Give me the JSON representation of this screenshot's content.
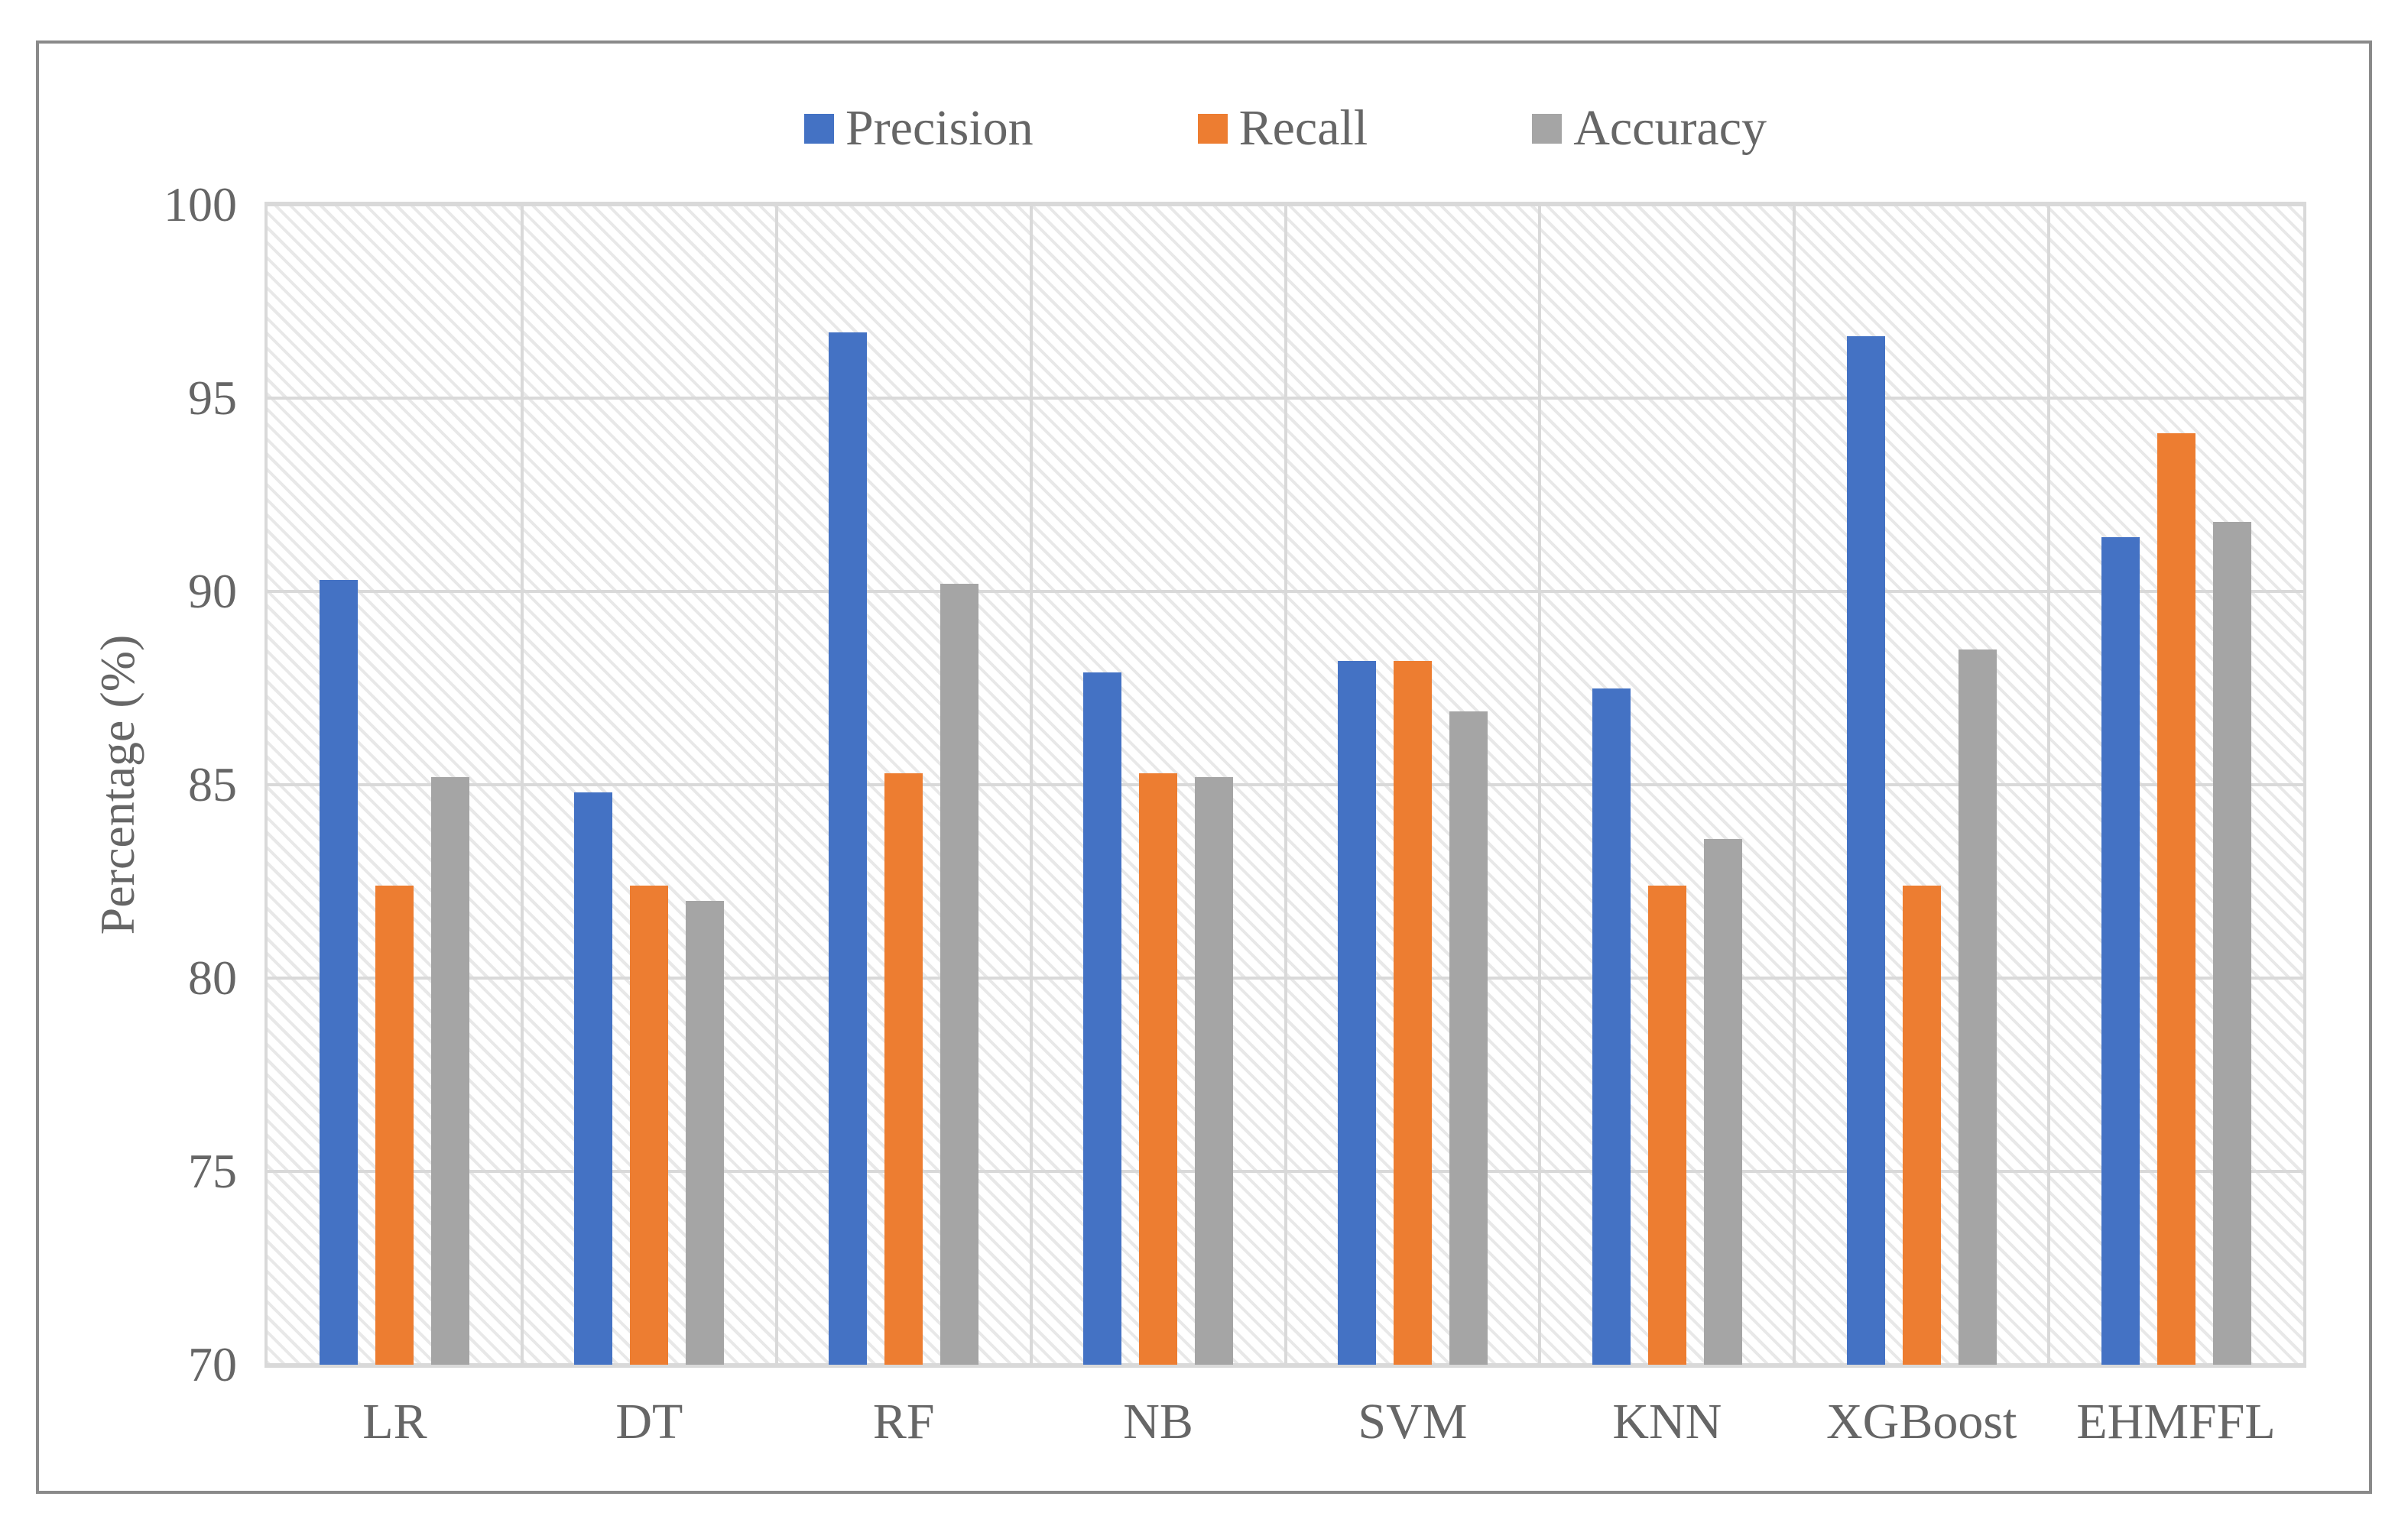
{
  "figure": {
    "kind": "clustered-bar-chart",
    "border_color": "#8A8A8A",
    "background_color": "#FFFFFF"
  },
  "colors": {
    "gridline": "#D9D9D9",
    "text": "#666666",
    "precision": "#4472C4",
    "recall": "#ED7D31",
    "accuracy": "#A5A5A5"
  },
  "chart_data": {
    "type": "bar",
    "title": "",
    "xlabel": "",
    "ylabel": "Percentage (%)",
    "ylim": [
      70,
      100
    ],
    "yticks": [
      70,
      75,
      80,
      85,
      90,
      95,
      100
    ],
    "grid": true,
    "legend_position": "top",
    "plot_background": "diagonal-hatch",
    "categories": [
      "LR",
      "DT",
      "RF",
      "NB",
      "SVM",
      "KNN",
      "XGBoost",
      "EHMFFL"
    ],
    "series": [
      {
        "name": "Precision",
        "color": "#4472C4",
        "values": [
          90.3,
          84.8,
          96.7,
          87.9,
          88.2,
          87.5,
          96.6,
          91.4
        ]
      },
      {
        "name": "Recall",
        "color": "#ED7D31",
        "values": [
          82.4,
          82.4,
          85.3,
          85.3,
          88.2,
          82.4,
          82.4,
          94.1
        ]
      },
      {
        "name": "Accuracy",
        "color": "#A5A5A5",
        "values": [
          85.2,
          82.0,
          90.2,
          85.2,
          86.9,
          83.6,
          88.5,
          91.8
        ]
      }
    ]
  }
}
